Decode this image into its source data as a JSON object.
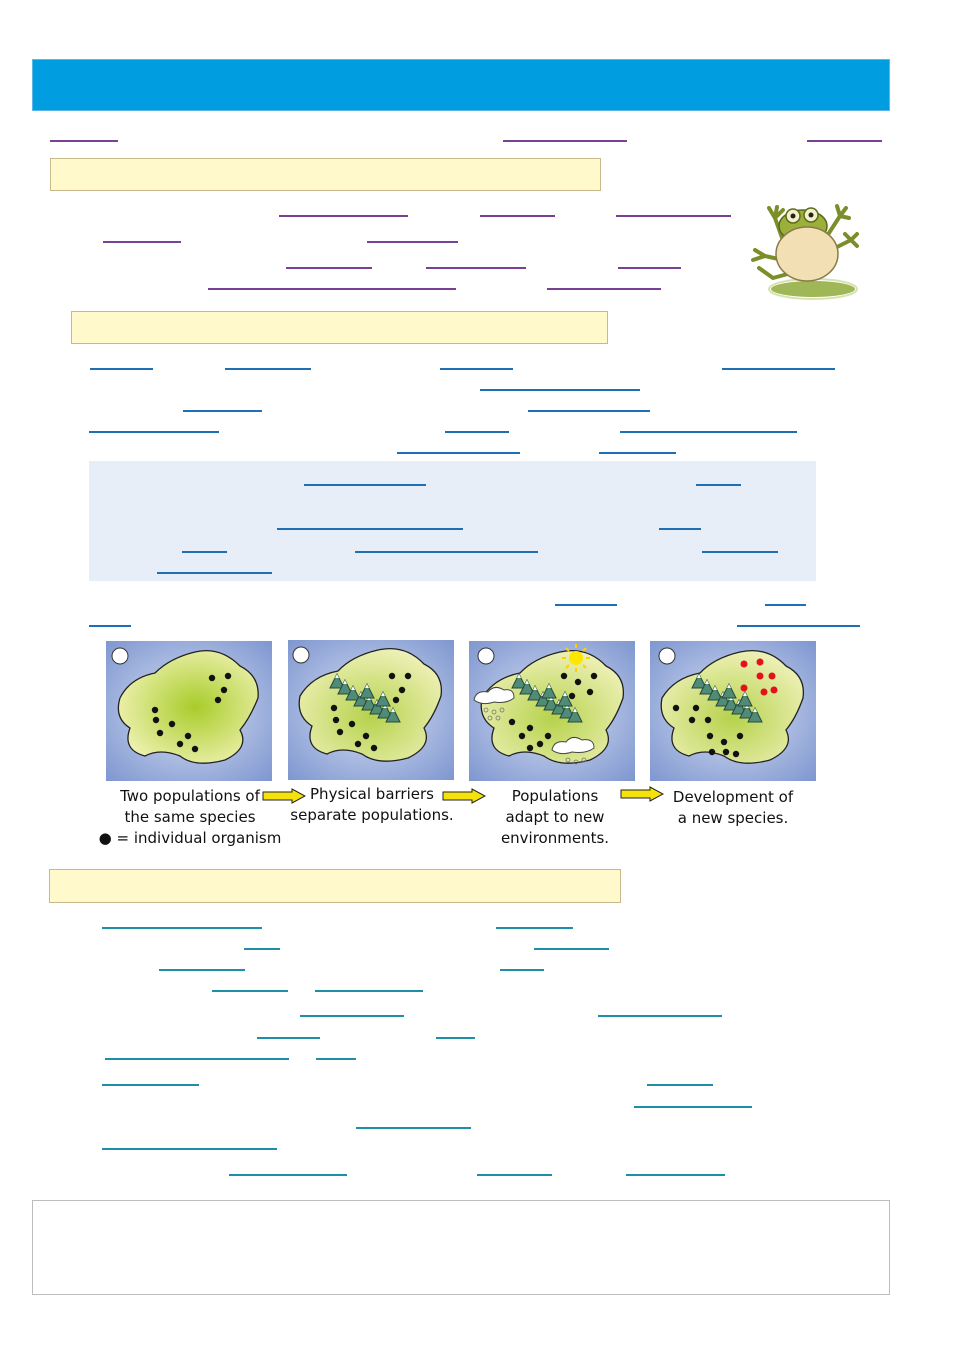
{
  "diagram": {
    "captions": [
      "Two populations of\nthe same species\n● = individual organism",
      "Physical barriers\nseparate populations.",
      "Populations\nadapt to new\nenvironments.",
      "Development of\na new species."
    ]
  },
  "colors": {
    "header": "#009ee0",
    "section_fill": "#fff9cc",
    "blank_purple": "#7b3f93",
    "blank_teal": "#1e8fa6",
    "island": "#e6ef9a",
    "water": "#8ea6d8",
    "new_species_dot": "#e3121a"
  },
  "icons": {
    "frog": "frog-illustration-icon",
    "arrow": "yellow-arrow-icon",
    "mountains": "mountain-icon",
    "sun": "sun-icon",
    "cloud": "snow-cloud-icon"
  }
}
